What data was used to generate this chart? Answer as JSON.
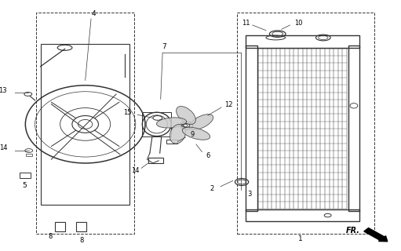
{
  "bg_color": "#ffffff",
  "line_color": "#333333",
  "fig_width": 5.11,
  "fig_height": 3.2,
  "dpi": 100
}
